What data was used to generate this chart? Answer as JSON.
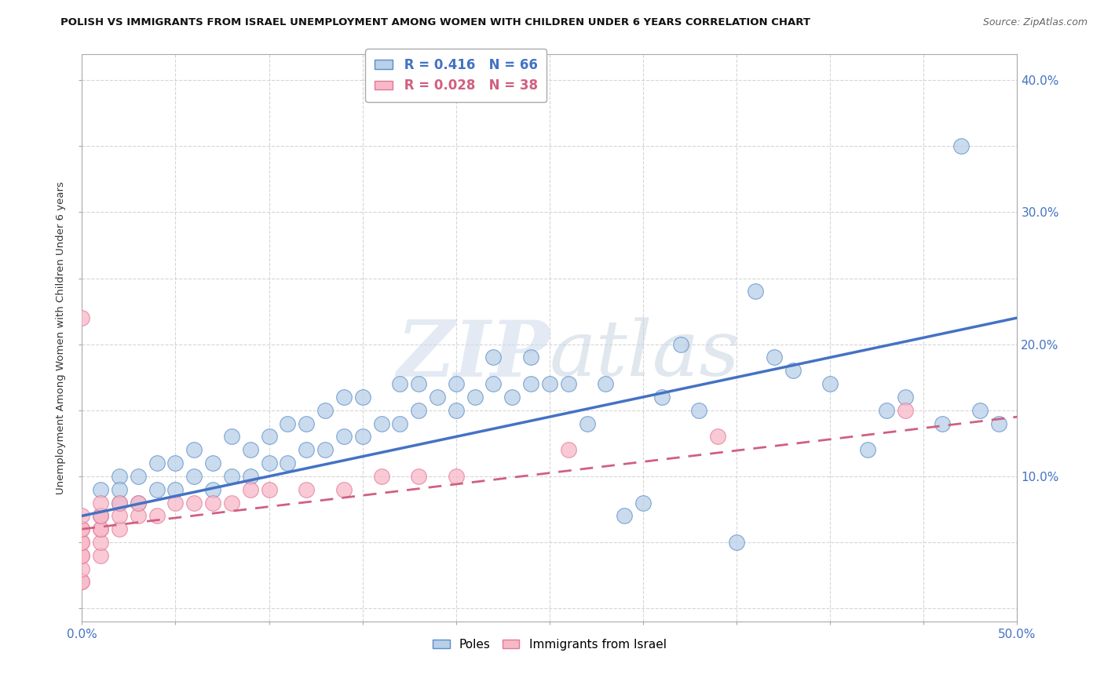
{
  "title": "POLISH VS IMMIGRANTS FROM ISRAEL UNEMPLOYMENT AMONG WOMEN WITH CHILDREN UNDER 6 YEARS CORRELATION CHART",
  "source": "Source: ZipAtlas.com",
  "ylabel": "Unemployment Among Women with Children Under 6 years",
  "xlim": [
    0.0,
    0.5
  ],
  "ylim": [
    -0.01,
    0.42
  ],
  "xticks": [
    0.0,
    0.05,
    0.1,
    0.15,
    0.2,
    0.25,
    0.3,
    0.35,
    0.4,
    0.45,
    0.5
  ],
  "yticks": [
    0.0,
    0.05,
    0.1,
    0.15,
    0.2,
    0.25,
    0.3,
    0.35,
    0.4
  ],
  "poles_R": 0.416,
  "poles_N": 66,
  "israel_R": 0.028,
  "israel_N": 38,
  "poles_color": "#b8d0e8",
  "poles_edge_color": "#5b8cc8",
  "poles_line_color": "#4472c4",
  "israel_color": "#f8b8c8",
  "israel_edge_color": "#e07898",
  "israel_line_color": "#d06080",
  "watermark_color": "#c8d8e8",
  "background_color": "#ffffff",
  "grid_color": "#cccccc",
  "poles_x": [
    0.01,
    0.01,
    0.02,
    0.02,
    0.02,
    0.03,
    0.03,
    0.04,
    0.04,
    0.05,
    0.05,
    0.06,
    0.06,
    0.07,
    0.07,
    0.08,
    0.08,
    0.09,
    0.09,
    0.1,
    0.1,
    0.11,
    0.11,
    0.12,
    0.12,
    0.13,
    0.13,
    0.14,
    0.14,
    0.15,
    0.15,
    0.16,
    0.17,
    0.17,
    0.18,
    0.18,
    0.19,
    0.2,
    0.2,
    0.21,
    0.22,
    0.22,
    0.23,
    0.24,
    0.24,
    0.25,
    0.26,
    0.27,
    0.28,
    0.29,
    0.3,
    0.31,
    0.32,
    0.33,
    0.35,
    0.36,
    0.37,
    0.38,
    0.4,
    0.42,
    0.43,
    0.44,
    0.46,
    0.47,
    0.48,
    0.49
  ],
  "poles_y": [
    0.07,
    0.09,
    0.08,
    0.1,
    0.09,
    0.08,
    0.1,
    0.09,
    0.11,
    0.09,
    0.11,
    0.1,
    0.12,
    0.09,
    0.11,
    0.1,
    0.13,
    0.1,
    0.12,
    0.11,
    0.13,
    0.11,
    0.14,
    0.12,
    0.14,
    0.12,
    0.15,
    0.13,
    0.16,
    0.13,
    0.16,
    0.14,
    0.14,
    0.17,
    0.15,
    0.17,
    0.16,
    0.15,
    0.17,
    0.16,
    0.17,
    0.19,
    0.16,
    0.17,
    0.19,
    0.17,
    0.17,
    0.14,
    0.17,
    0.07,
    0.08,
    0.16,
    0.2,
    0.15,
    0.05,
    0.24,
    0.19,
    0.18,
    0.17,
    0.12,
    0.15,
    0.16,
    0.14,
    0.35,
    0.15,
    0.14
  ],
  "israel_x": [
    0.0,
    0.0,
    0.0,
    0.0,
    0.0,
    0.0,
    0.0,
    0.0,
    0.0,
    0.0,
    0.0,
    0.01,
    0.01,
    0.01,
    0.01,
    0.01,
    0.01,
    0.01,
    0.02,
    0.02,
    0.02,
    0.03,
    0.03,
    0.04,
    0.05,
    0.06,
    0.07,
    0.08,
    0.09,
    0.1,
    0.12,
    0.14,
    0.16,
    0.18,
    0.2,
    0.26,
    0.34,
    0.44
  ],
  "israel_y": [
    0.02,
    0.02,
    0.03,
    0.04,
    0.04,
    0.05,
    0.05,
    0.06,
    0.06,
    0.07,
    0.22,
    0.04,
    0.05,
    0.06,
    0.06,
    0.07,
    0.07,
    0.08,
    0.06,
    0.07,
    0.08,
    0.07,
    0.08,
    0.07,
    0.08,
    0.08,
    0.08,
    0.08,
    0.09,
    0.09,
    0.09,
    0.09,
    0.1,
    0.1,
    0.1,
    0.12,
    0.13,
    0.15
  ],
  "blue_trend_x0": 0.0,
  "blue_trend_y0": 0.07,
  "blue_trend_x1": 0.5,
  "blue_trend_y1": 0.22,
  "pink_trend_x0": 0.0,
  "pink_trend_y0": 0.06,
  "pink_trend_x1": 0.5,
  "pink_trend_y1": 0.145
}
